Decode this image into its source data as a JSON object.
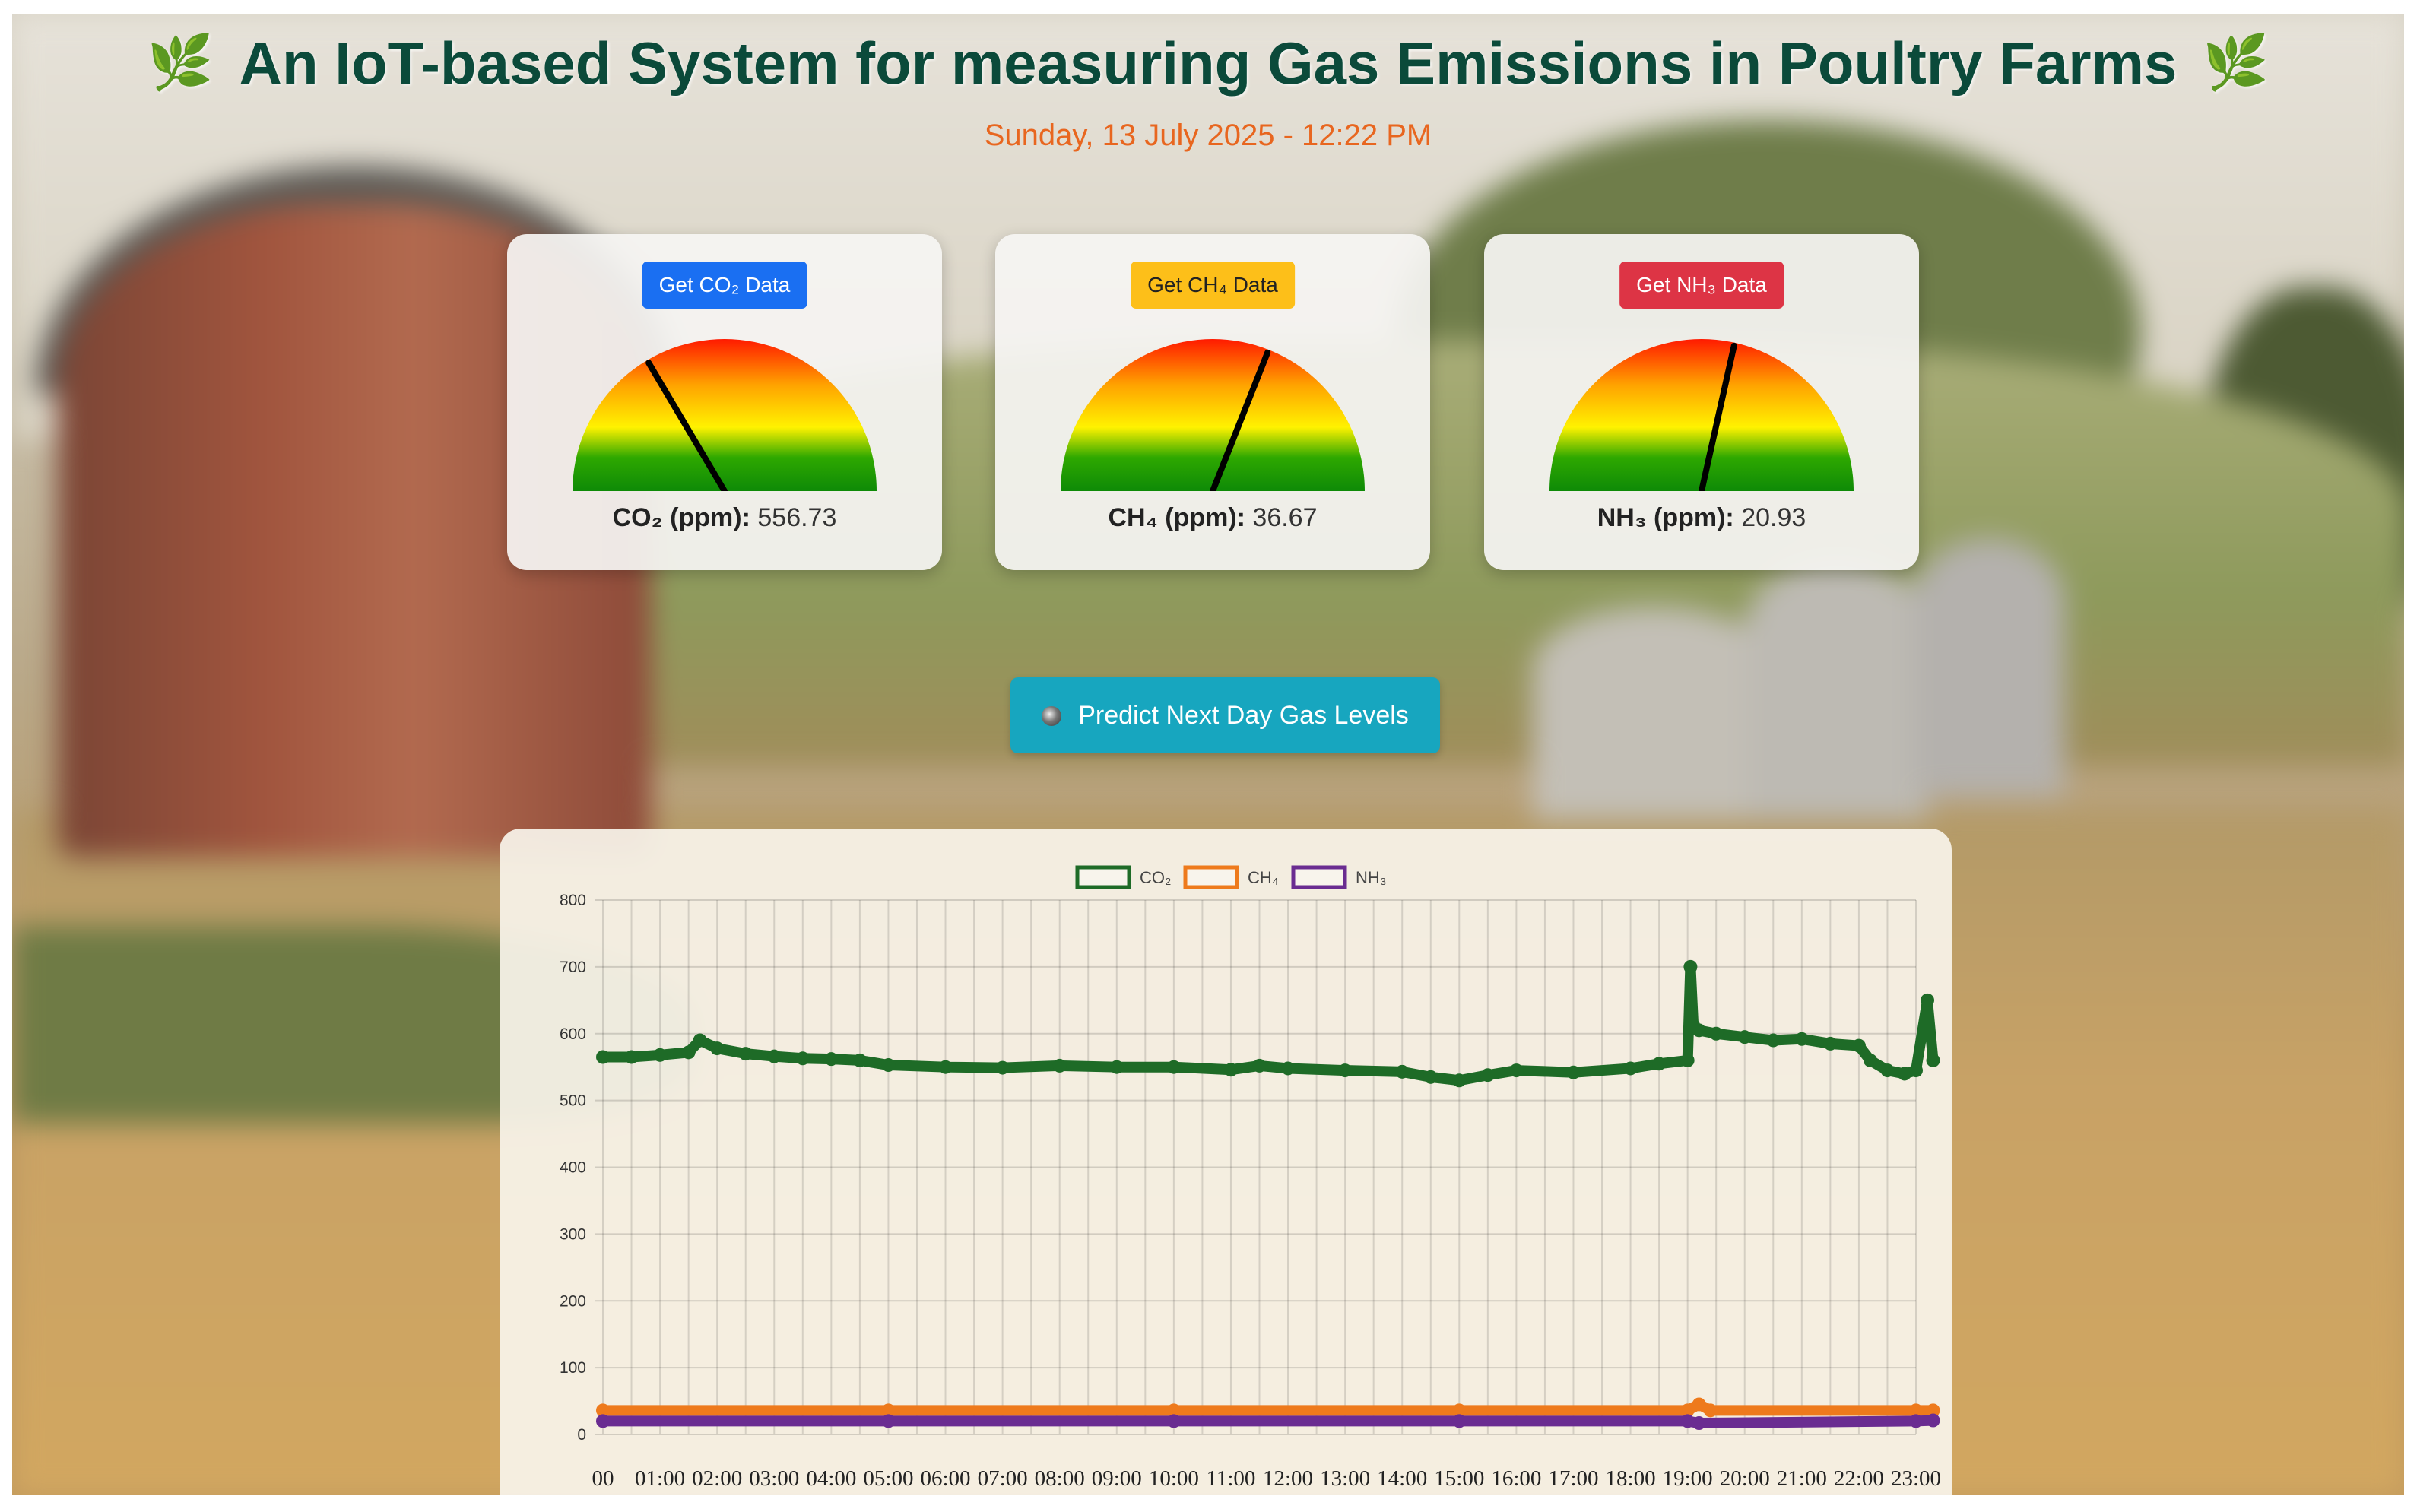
{
  "header": {
    "title": "An IoT-based System for measuring Gas Emissions in Poultry Farms",
    "leaf_icon": "🌿",
    "datetime": "Sunday, 13 July 2025 - 12:22 PM"
  },
  "gauges": [
    {
      "button_label": "Get CO₂ Data",
      "button_color": "#1a6ff2",
      "button_text_color": "#ffffff",
      "label": "CO₂ (ppm):",
      "value": "556.73",
      "needle_fraction": 0.33
    },
    {
      "button_label": "Get CH₄ Data",
      "button_color": "#fdbf19",
      "button_text_color": "#222222",
      "label": "CH₄ (ppm):",
      "value": "36.67",
      "needle_fraction": 0.62
    },
    {
      "button_label": "Get NH₃ Data",
      "button_color": "#dd3445",
      "button_text_color": "#ffffff",
      "label": "NH₃ (ppm):",
      "value": "20.93",
      "needle_fraction": 0.57
    }
  ],
  "predict_button": {
    "label": "Predict Next Day Gas Levels",
    "icon": "crystal-ball-icon"
  },
  "chart_data": {
    "type": "line",
    "legend_position": "top-center",
    "grid": true,
    "ylim": [
      0,
      800
    ],
    "yticks": [
      0,
      100,
      200,
      300,
      400,
      500,
      600,
      700,
      800
    ],
    "x_tick_labels": [
      "00",
      "01:00",
      "02:00",
      "03:00",
      "04:00",
      "05:00",
      "06:00",
      "07:00",
      "08:00",
      "09:00",
      "10:00",
      "11:00",
      "12:00",
      "13:00",
      "14:00",
      "15:00",
      "16:00",
      "17:00",
      "18:00",
      "19:00",
      "20:00",
      "21:00",
      "22:00",
      "23:00"
    ],
    "series": [
      {
        "name": "CO₂",
        "color": "#1e6b27",
        "x": [
          0,
          0.5,
          1,
          1.5,
          1.7,
          2,
          2.5,
          3,
          3.5,
          4,
          4.5,
          5,
          6,
          7,
          8,
          9,
          10,
          11,
          11.5,
          12,
          13,
          14,
          14.5,
          15,
          15.5,
          16,
          17,
          18,
          18.5,
          19,
          19.05,
          19.1,
          19.2,
          19.5,
          20,
          20.5,
          21,
          21.5,
          22,
          22.2,
          22.5,
          22.8,
          23,
          23.2,
          23.3
        ],
        "y": [
          565,
          565,
          568,
          572,
          590,
          578,
          570,
          566,
          563,
          562,
          560,
          553,
          550,
          549,
          552,
          550,
          550,
          546,
          552,
          548,
          545,
          543,
          535,
          530,
          538,
          545,
          542,
          548,
          555,
          560,
          700,
          612,
          605,
          600,
          595,
          590,
          592,
          585,
          582,
          560,
          545,
          540,
          545,
          650,
          560
        ]
      },
      {
        "name": "CH₄",
        "color": "#ee7a1c",
        "x": [
          0,
          5,
          10,
          15,
          19,
          19.2,
          19.4,
          23,
          23.3
        ],
        "y": [
          36,
          36,
          36,
          36,
          36,
          45,
          36,
          36,
          36
        ]
      },
      {
        "name": "NH₃",
        "color": "#6a2c91",
        "x": [
          0,
          5,
          10,
          15,
          19,
          19.2,
          23,
          23.3
        ],
        "y": [
          20,
          20,
          20,
          20,
          20,
          17,
          20,
          21
        ]
      }
    ]
  }
}
